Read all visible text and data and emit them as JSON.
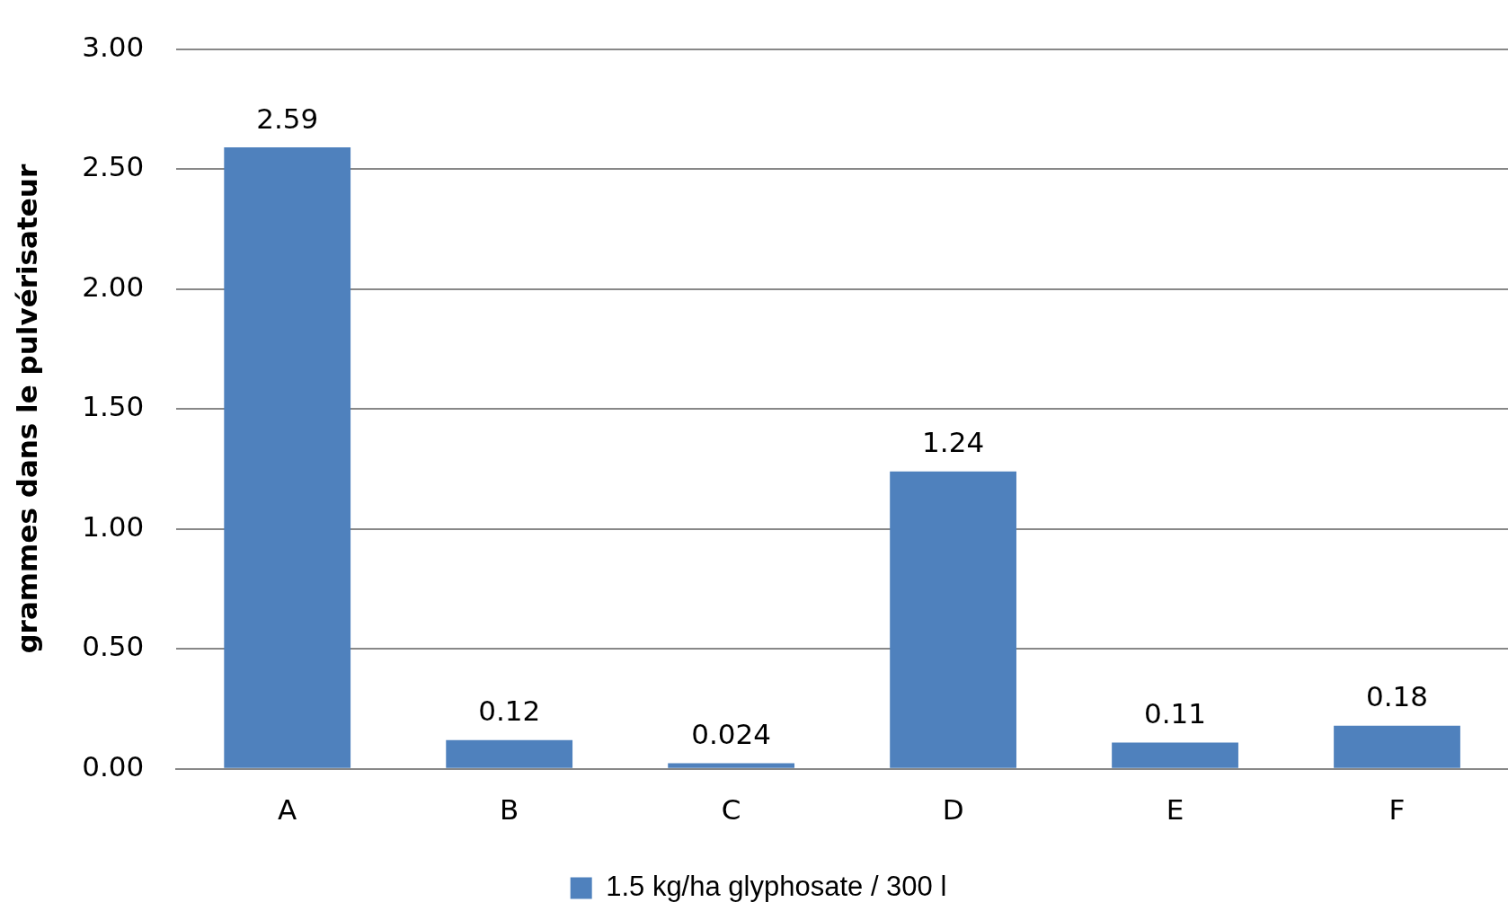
{
  "chart_data": {
    "type": "bar",
    "ylabel": "grammes dans le pulvérisateur",
    "categories": [
      "A",
      "B",
      "C",
      "D",
      "E",
      "F"
    ],
    "series": [
      {
        "name": "1.5 kg/ha glyphosate / 300 l",
        "color": "#4f81bd",
        "values": [
          2.59,
          0.12,
          0.024,
          1.24,
          0.11,
          0.18
        ]
      }
    ],
    "ylim": [
      0,
      3
    ],
    "yticks": [
      {
        "value": 0,
        "label": "0.00"
      },
      {
        "value": 0.5,
        "label": "0.50"
      },
      {
        "value": 1,
        "label": "1.00"
      },
      {
        "value": 1.5,
        "label": "1.50"
      },
      {
        "value": 2,
        "label": "2.00"
      },
      {
        "value": 2.5,
        "label": "2.50"
      },
      {
        "value": 3,
        "label": "3.00"
      }
    ],
    "grid": "y",
    "legend": "bottom",
    "data_labels": true
  }
}
